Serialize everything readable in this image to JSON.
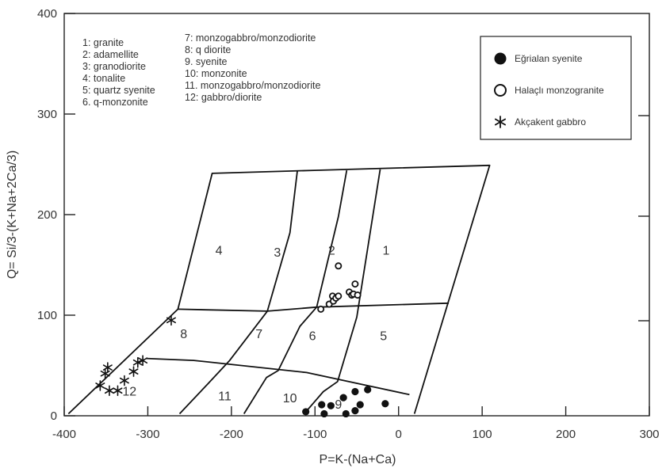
{
  "chart_data": {
    "type": "scatter",
    "xlabel": "P=K-(Na+Ca)",
    "ylabel": "Q= Si/3-(K+Na+2Ca/3)",
    "xlim": [
      -400,
      300
    ],
    "ylim": [
      0,
      400
    ],
    "xticks": [
      "-400",
      "-300",
      "-200",
      "-100",
      "0",
      "100",
      "200",
      "300"
    ],
    "yticks": [
      "0",
      "100",
      "200",
      "300",
      "400"
    ],
    "xtick_values": [
      -400,
      -300,
      -200,
      -100,
      0,
      100,
      200,
      300
    ],
    "ytick_values": [
      0,
      100,
      200,
      300,
      400
    ],
    "field_key": [
      "1: granite",
      "2: adamellite",
      "3: granodiorite",
      "4: tonalite",
      "5: quartz syenite",
      "6. q-monzonite",
      "7: monzogabbro/monzodiorite",
      "8: q diorite",
      "9. syenite",
      "10: monzonite",
      "11. monzogabbro/monzodiorite",
      "12: gabbro/diorite"
    ],
    "field_labels": [
      {
        "text": "1",
        "x": -15,
        "y": 165
      },
      {
        "text": "2",
        "x": -80,
        "y": 165
      },
      {
        "text": "3",
        "x": -145,
        "y": 163
      },
      {
        "text": "4",
        "x": -215,
        "y": 165
      },
      {
        "text": "5",
        "x": -18,
        "y": 80
      },
      {
        "text": "6",
        "x": -103,
        "y": 80
      },
      {
        "text": "7",
        "x": -167,
        "y": 82
      },
      {
        "text": "8",
        "x": -257,
        "y": 82
      },
      {
        "text": "9",
        "x": -72,
        "y": 12
      },
      {
        "text": "10",
        "x": -130,
        "y": 18
      },
      {
        "text": "11",
        "x": -208,
        "y": 20
      },
      {
        "text": "12",
        "x": -322,
        "y": 25
      }
    ],
    "boundaries": [
      [
        [
          -395,
          2
        ],
        [
          -264,
          106
        ],
        [
          -223,
          241
        ],
        [
          -101,
          244
        ],
        [
          109,
          249
        ],
        [
          19,
          2
        ]
      ],
      [
        [
          -264,
          106
        ],
        [
          -157,
          104
        ],
        [
          -98,
          108
        ],
        [
          60,
          112
        ]
      ],
      [
        [
          -302,
          57
        ],
        [
          -245,
          55
        ],
        [
          -110,
          43
        ],
        [
          13,
          21
        ]
      ],
      [
        [
          -262,
          2
        ],
        [
          -229,
          31
        ],
        [
          -202,
          55
        ],
        [
          -157,
          104
        ],
        [
          -130,
          182
        ],
        [
          -121,
          244
        ]
      ],
      [
        [
          -185,
          2
        ],
        [
          -158,
          38
        ],
        [
          -144,
          45
        ],
        [
          -118,
          89
        ],
        [
          -98,
          108
        ],
        [
          -72,
          198
        ],
        [
          -62,
          244
        ]
      ],
      [
        [
          -113,
          2
        ],
        [
          -90,
          24
        ],
        [
          -73,
          34
        ],
        [
          -50,
          98
        ],
        [
          -22,
          245
        ]
      ]
    ],
    "series": [
      {
        "name": "Eğrialan syenite",
        "marker": "filled-circle",
        "points": [
          [
            -111,
            4
          ],
          [
            -92,
            11
          ],
          [
            -89,
            2
          ],
          [
            -81,
            10
          ],
          [
            -66,
            18
          ],
          [
            -63,
            2
          ],
          [
            -52,
            5
          ],
          [
            -52,
            24
          ],
          [
            -46,
            11
          ],
          [
            -37,
            26
          ],
          [
            -16,
            12
          ]
        ]
      },
      {
        "name": "Halaçlı monzogranite",
        "marker": "open-circle",
        "points": [
          [
            -93,
            106
          ],
          [
            -83,
            111
          ],
          [
            -79,
            119
          ],
          [
            -78,
            114
          ],
          [
            -75,
            117
          ],
          [
            -72,
            119
          ],
          [
            -72,
            149
          ],
          [
            -59,
            123
          ],
          [
            -56,
            120
          ],
          [
            -54,
            121
          ],
          [
            -52,
            131
          ],
          [
            -49,
            120
          ]
        ]
      },
      {
        "name": "Akçakent gabbro",
        "marker": "asterisk",
        "points": [
          [
            -306,
            55
          ],
          [
            -312,
            53
          ],
          [
            -348,
            48
          ],
          [
            -351,
            42
          ],
          [
            -317,
            44
          ],
          [
            -328,
            35
          ],
          [
            -357,
            30
          ],
          [
            -346,
            25
          ],
          [
            -336,
            25
          ],
          [
            -272,
            95
          ]
        ]
      }
    ],
    "legend_position": "top-right"
  }
}
